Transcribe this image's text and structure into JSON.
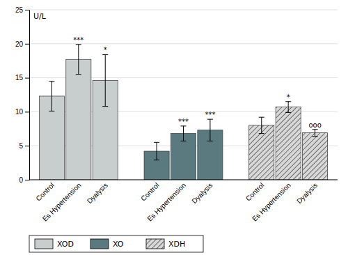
{
  "chart_data": {
    "type": "bar",
    "ylabel": "U/L",
    "categories": [
      "Control",
      "Es Hypertension",
      "Dyalysis"
    ],
    "series": [
      {
        "name": "XOD",
        "color": "#c8cece",
        "values": [
          12.3,
          17.7,
          14.6
        ],
        "errors": [
          2.2,
          2.2,
          3.8
        ],
        "annotations": [
          null,
          "***",
          "*"
        ]
      },
      {
        "name": "XO",
        "color": "#5a7a80",
        "values": [
          4.2,
          6.8,
          7.3
        ],
        "errors": [
          1.3,
          1.1,
          1.6
        ],
        "annotations": [
          null,
          "***",
          "***"
        ]
      },
      {
        "name": "XDH",
        "color": "#d8d8d8",
        "values": [
          8.0,
          10.7,
          6.9
        ],
        "errors": [
          1.2,
          0.8,
          0.5
        ],
        "annotations": [
          null,
          "*",
          "ooo"
        ]
      }
    ],
    "ylim": [
      0,
      25
    ],
    "yticks": [
      0,
      5,
      10,
      15,
      20,
      25
    ],
    "grid": true
  }
}
